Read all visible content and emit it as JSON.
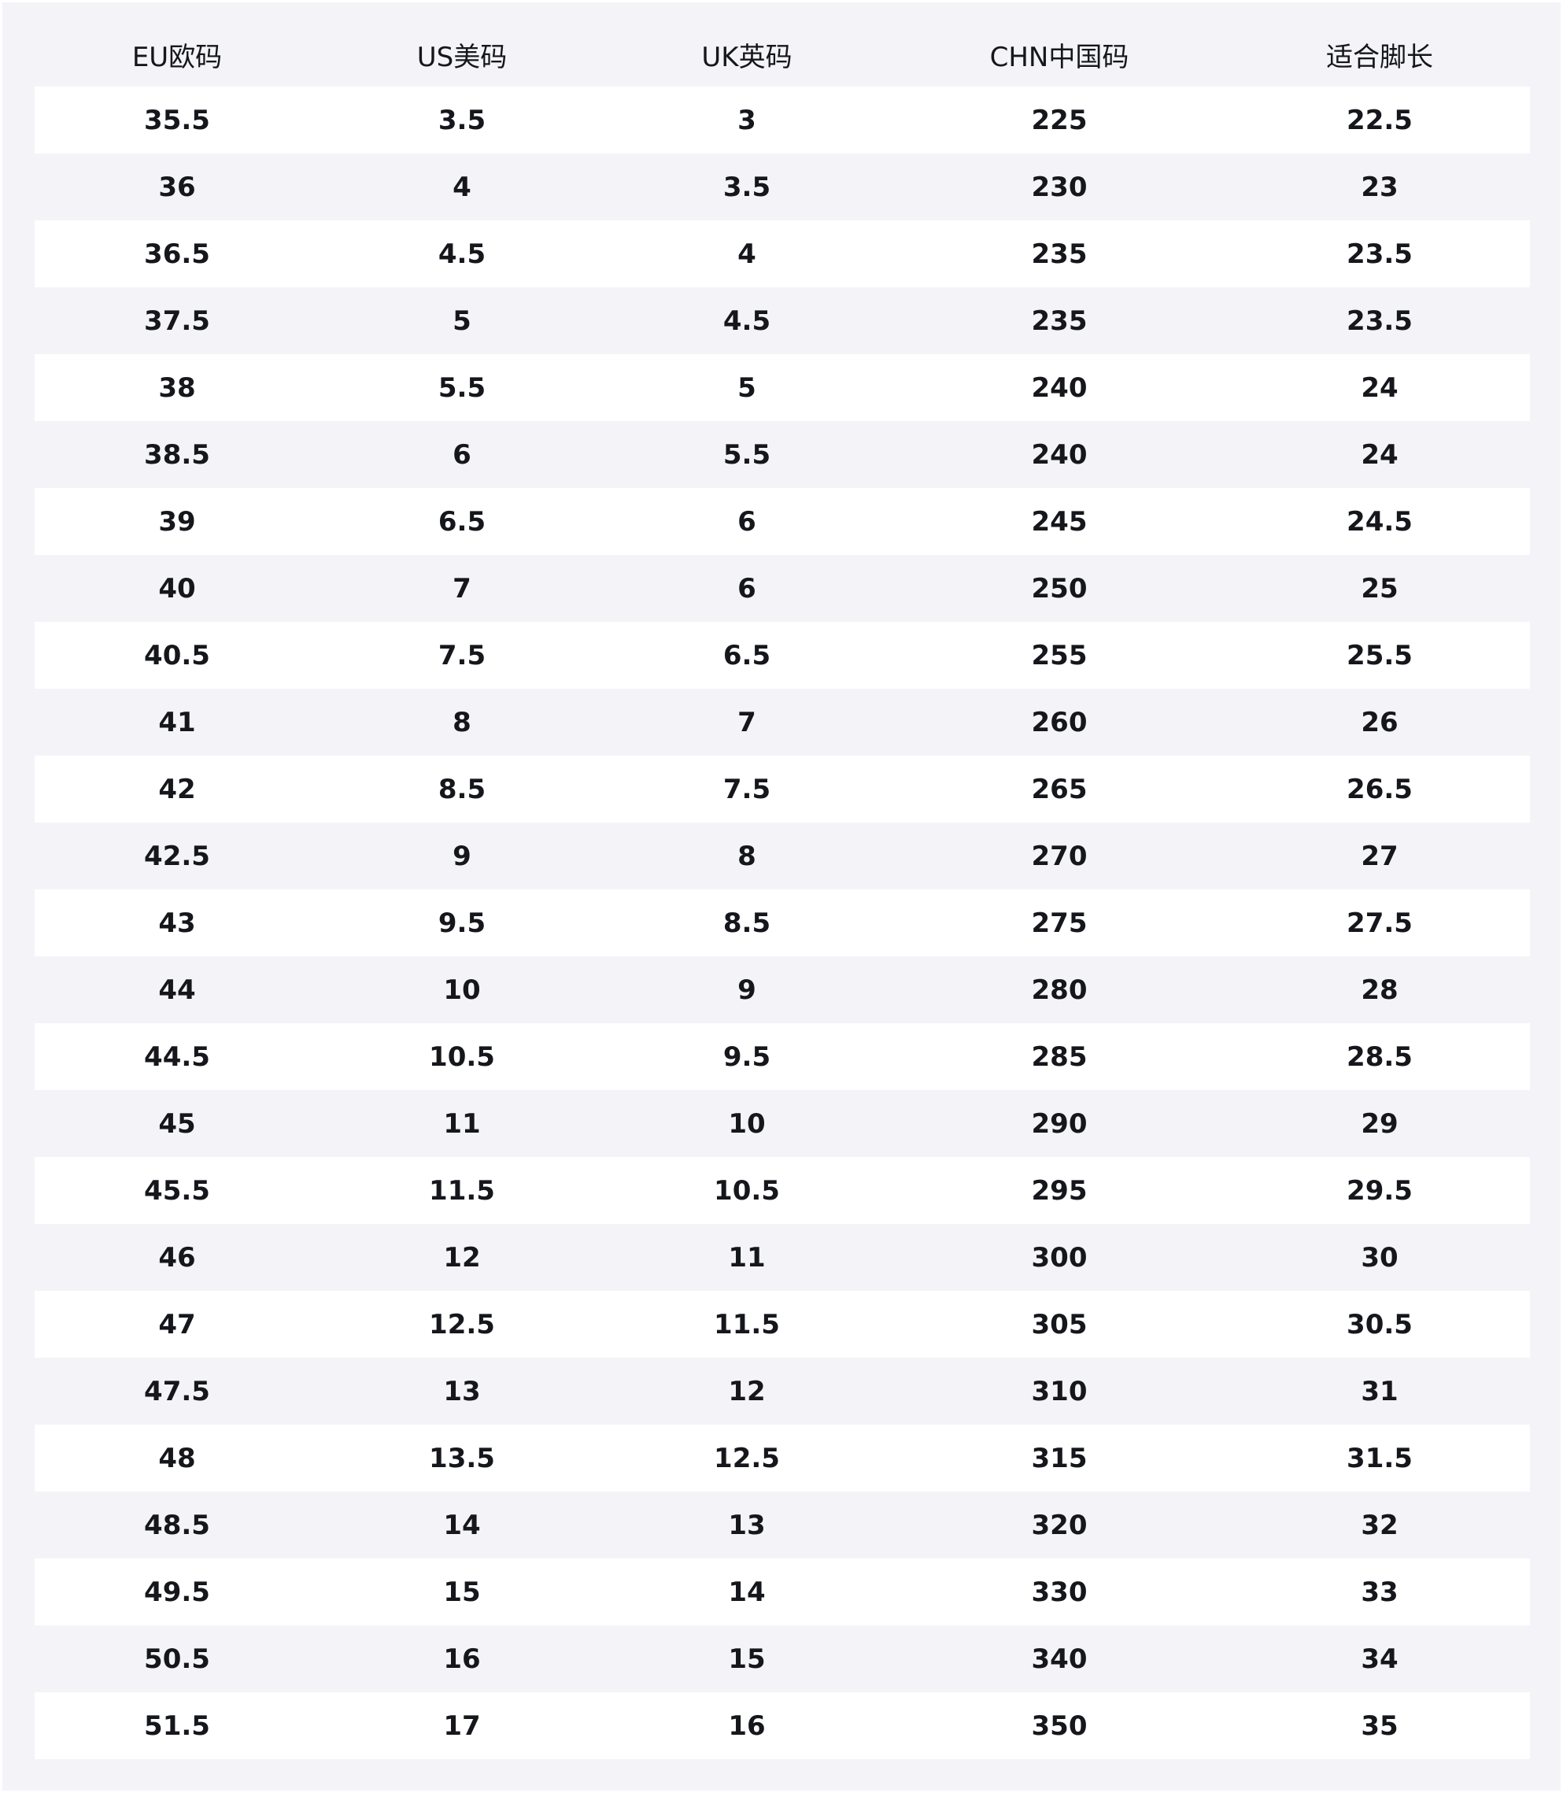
{
  "headers": [
    "EU欧码",
    "US美码",
    "UK英码",
    "CHN中国码",
    "适合脚长"
  ],
  "rows": [
    [
      "35.5",
      "3.5",
      "3",
      "225",
      "22.5"
    ],
    [
      "36",
      "4",
      "3.5",
      "230",
      "23"
    ],
    [
      "36.5",
      "4.5",
      "4",
      "235",
      "23.5"
    ],
    [
      "37.5",
      "5",
      "4.5",
      "235",
      "23.5"
    ],
    [
      "38",
      "5.5",
      "5",
      "240",
      "24"
    ],
    [
      "38.5",
      "6",
      "5.5",
      "240",
      "24"
    ],
    [
      "39",
      "6.5",
      "6",
      "245",
      "24.5"
    ],
    [
      "40",
      "7",
      "6",
      "250",
      "25"
    ],
    [
      "40.5",
      "7.5",
      "6.5",
      "255",
      "25.5"
    ],
    [
      "41",
      "8",
      "7",
      "260",
      "26"
    ],
    [
      "42",
      "8.5",
      "7.5",
      "265",
      "26.5"
    ],
    [
      "42.5",
      "9",
      "8",
      "270",
      "27"
    ],
    [
      "43",
      "9.5",
      "8.5",
      "275",
      "27.5"
    ],
    [
      "44",
      "10",
      "9",
      "280",
      "28"
    ],
    [
      "44.5",
      "10.5",
      "9.5",
      "285",
      "28.5"
    ],
    [
      "45",
      "11",
      "10",
      "290",
      "29"
    ],
    [
      "45.5",
      "11.5",
      "10.5",
      "295",
      "29.5"
    ],
    [
      "46",
      "12",
      "11",
      "300",
      "30"
    ],
    [
      "47",
      "12.5",
      "11.5",
      "305",
      "30.5"
    ],
    [
      "47.5",
      "13",
      "12",
      "310",
      "31"
    ],
    [
      "48",
      "13.5",
      "12.5",
      "315",
      "31.5"
    ],
    [
      "48.5",
      "14",
      "13",
      "320",
      "32"
    ],
    [
      "49.5",
      "15",
      "14",
      "330",
      "33"
    ],
    [
      "50.5",
      "16",
      "15",
      "340",
      "34"
    ],
    [
      "51.5",
      "17",
      "16",
      "350",
      "35"
    ]
  ]
}
